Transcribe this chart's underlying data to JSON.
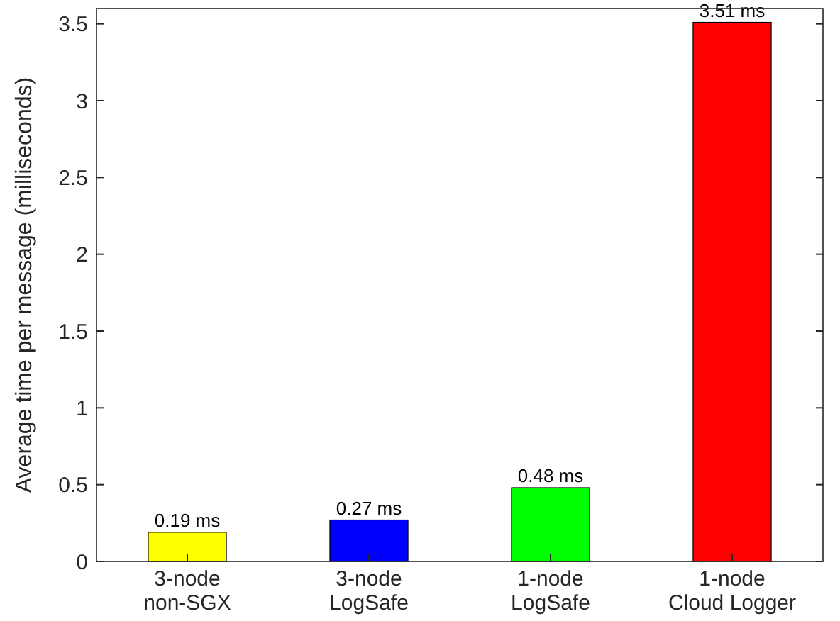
{
  "chart_data": {
    "type": "bar",
    "ylabel": "Average time per message (milliseconds)",
    "categories": [
      "3-node non-SGX",
      "3-node LogSafe",
      "1-node LogSafe",
      "1-node Cloud Logger"
    ],
    "values": [
      0.19,
      0.27,
      0.48,
      3.51
    ],
    "colors": [
      "#ffff00",
      "#0000ff",
      "#00ff00",
      "#ff0000"
    ],
    "value_labels": [
      "0.19 ms",
      "0.27 ms",
      "0.48 ms",
      "3.51 ms"
    ],
    "ylim": [
      0,
      3.6
    ],
    "yticks": [
      0,
      0.5,
      1,
      1.5,
      2,
      2.5,
      3,
      3.5
    ],
    "grid": false
  }
}
